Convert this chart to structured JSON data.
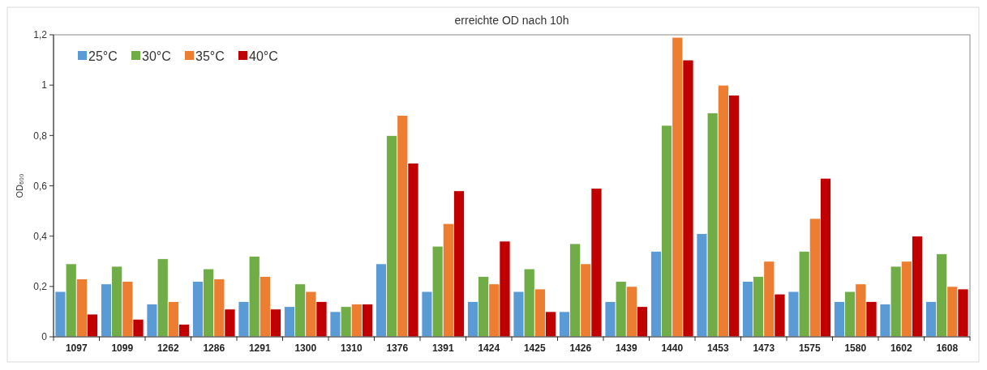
{
  "chart_data": {
    "type": "bar",
    "title": "erreichte OD nach 10h",
    "ylabel": "OD₆₀₀",
    "categories": [
      "1097",
      "1099",
      "1262",
      "1286",
      "1291",
      "1300",
      "1310",
      "1376",
      "1391",
      "1424",
      "1425",
      "1426",
      "1439",
      "1440",
      "1453",
      "1473",
      "1575",
      "1580",
      "1602",
      "1608"
    ],
    "series": [
      {
        "name": "25°C",
        "color": "#5b9bd5",
        "values": [
          0.18,
          0.21,
          0.13,
          0.22,
          0.14,
          0.12,
          0.1,
          0.29,
          0.18,
          0.14,
          0.18,
          0.1,
          0.14,
          0.34,
          0.41,
          0.22,
          0.18,
          0.14,
          0.13,
          0.14
        ]
      },
      {
        "name": "30°C",
        "color": "#70ad47",
        "values": [
          0.29,
          0.28,
          0.31,
          0.27,
          0.32,
          0.21,
          0.12,
          0.8,
          0.36,
          0.24,
          0.27,
          0.37,
          0.22,
          0.84,
          0.89,
          0.24,
          0.34,
          0.18,
          0.28,
          0.33
        ]
      },
      {
        "name": "35°C",
        "color": "#ed7d31",
        "values": [
          0.23,
          0.22,
          0.14,
          0.23,
          0.24,
          0.18,
          0.13,
          0.88,
          0.45,
          0.21,
          0.19,
          0.29,
          0.2,
          1.19,
          1,
          0.3,
          0.47,
          0.21,
          0.3,
          0.2
        ]
      },
      {
        "name": "40°C",
        "color": "#c00000",
        "values": [
          0.09,
          0.07,
          0.05,
          0.11,
          0.11,
          0.14,
          0.13,
          0.69,
          0.58,
          0.38,
          0.1,
          0.59,
          0.12,
          1.1,
          0.96,
          0.17,
          0.63,
          0.14,
          0.4,
          0.19
        ]
      }
    ],
    "ylim": [
      0,
      1.2
    ],
    "yticks": [
      0,
      {
        "value": 0.2,
        "label": "0,2"
      },
      {
        "value": 0.4,
        "label": "0,4"
      },
      {
        "value": 0.6,
        "label": "0,6"
      },
      {
        "value": 0.8,
        "label": "0,8"
      },
      1,
      {
        "value": 1.2,
        "label": "1,2"
      }
    ],
    "legend": "top left"
  }
}
